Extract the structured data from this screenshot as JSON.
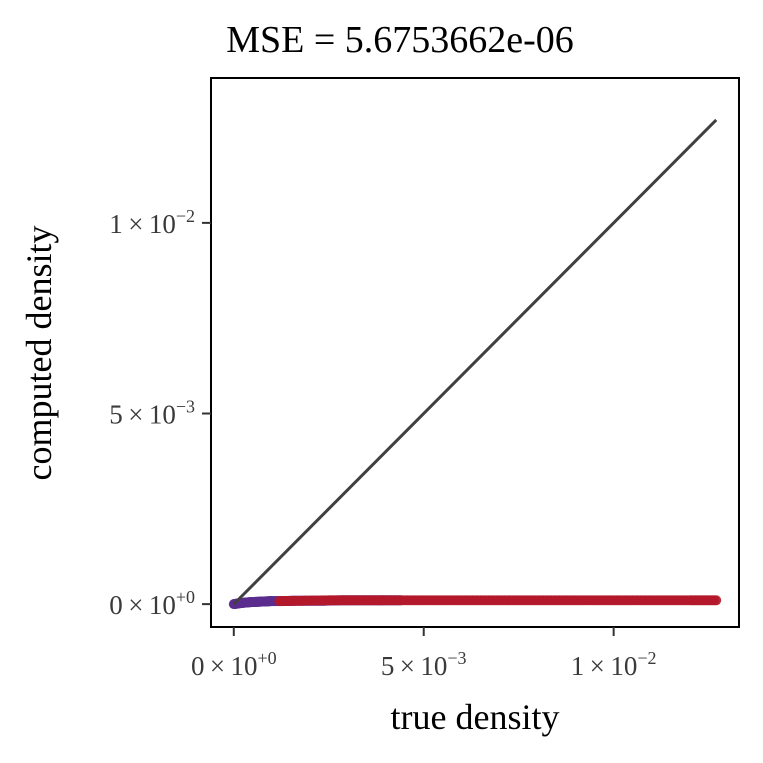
{
  "chart_data": {
    "type": "scatter",
    "title": "MSE = 5.6753662e-06",
    "xlabel": "true density",
    "ylabel": "computed density",
    "xlim": [
      -0.0006,
      0.0133
    ],
    "ylim": [
      -0.0006,
      0.0138
    ],
    "x_ticks": [
      {
        "value": 0,
        "mantissa": "0",
        "exponent": "+0"
      },
      {
        "value": 0.005,
        "mantissa": "5",
        "exponent": "−3"
      },
      {
        "value": 0.01,
        "mantissa": "1",
        "exponent": "−2"
      }
    ],
    "y_ticks": [
      {
        "value": 0,
        "mantissa": "0",
        "exponent": "+0"
      },
      {
        "value": 0.005,
        "mantissa": "5",
        "exponent": "−3"
      },
      {
        "value": 0.01,
        "mantissa": "1",
        "exponent": "−2"
      }
    ],
    "reference_line": {
      "x": [
        0,
        0.0127
      ],
      "y": [
        0,
        0.0127
      ],
      "color": "#404040"
    },
    "series": [
      {
        "color": "#5b2d8e",
        "x": [
          0,
          0.0002,
          0.0004,
          0.0006,
          0.0008,
          0.001,
          0.0013,
          0.0016,
          0.002,
          0.0024,
          0.0028,
          0.0032,
          0.0036,
          0.004,
          0.0044
        ],
        "y": [
          0,
          3e-05,
          5e-05,
          6e-05,
          7e-05,
          8e-05,
          8e-05,
          9e-05,
          9e-05,
          9e-05,
          0.0001,
          0.0001,
          0.0001,
          0.0001,
          0.0001
        ]
      },
      {
        "color": "#b2182b",
        "x": [
          0.0012,
          0.0018,
          0.0025,
          0.0032,
          0.004,
          0.005,
          0.006,
          0.007,
          0.008,
          0.009,
          0.01,
          0.011,
          0.012,
          0.0127
        ],
        "y": [
          8e-05,
          9e-05,
          0.0001,
          0.0001,
          0.0001,
          0.0001,
          0.0001,
          0.0001,
          0.0001,
          0.0001,
          0.0001,
          0.0001,
          0.0001,
          0.0001
        ]
      }
    ],
    "grid": false,
    "legend": "none"
  }
}
